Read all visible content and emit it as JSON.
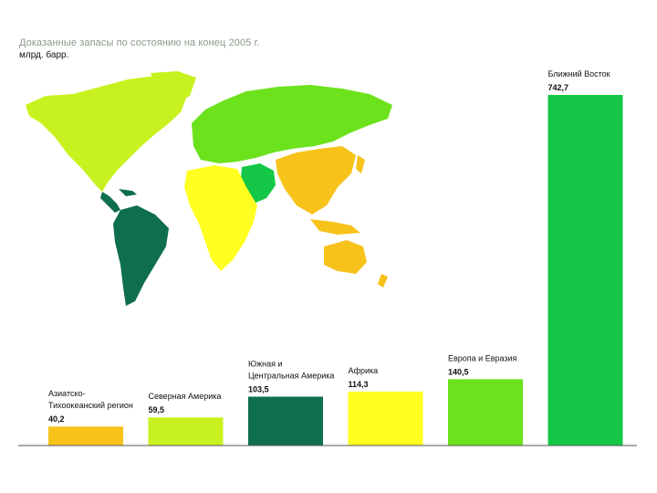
{
  "header": {
    "title": "Доказанные запасы по состоянию на конец 2005 г.",
    "unit": "млрд. барр."
  },
  "colors": {
    "asia_pacific": "#f7c21a",
    "north_america": "#c8f21f",
    "south_central_america": "#0f6e4c",
    "africa": "#ffff22",
    "europe_eurasia": "#6ce21c",
    "middle_east": "#14c746",
    "axis": "#555555"
  },
  "chart_data": {
    "type": "bar",
    "title": "Доказанные запасы по состоянию на конец 2005 г.",
    "ylabel": "млрд. барр.",
    "xlabel": "",
    "ylim": [
      0,
      742.7
    ],
    "grid": false,
    "categories": [
      "Азиатско-Тихоокеанский регион",
      "Северная Америка",
      "Южная и Центральная Америка",
      "Африка",
      "Европа и Евразия",
      "Ближний Восток"
    ],
    "bars": [
      {
        "label_lines": [
          "Азиатско-",
          "Тихоокеанский регион"
        ],
        "value": 40.2,
        "value_text": "40,2",
        "color": "#f7c21a"
      },
      {
        "label_lines": [
          "Северная Америка"
        ],
        "value": 59.5,
        "value_text": "59,5",
        "color": "#c8f21f"
      },
      {
        "label_lines": [
          "Южная и",
          "Центральная Америка"
        ],
        "value": 103.5,
        "value_text": "103,5",
        "color": "#0f6e4c"
      },
      {
        "label_lines": [
          "Африка"
        ],
        "value": 114.3,
        "value_text": "114,3",
        "color": "#ffff22"
      },
      {
        "label_lines": [
          "Европа и Евразия"
        ],
        "value": 140.5,
        "value_text": "140,5",
        "color": "#6ce21c"
      },
      {
        "label_lines": [
          "Ближний Восток"
        ],
        "value": 742.7,
        "value_text": "742,7",
        "color": "#14c746"
      }
    ]
  }
}
